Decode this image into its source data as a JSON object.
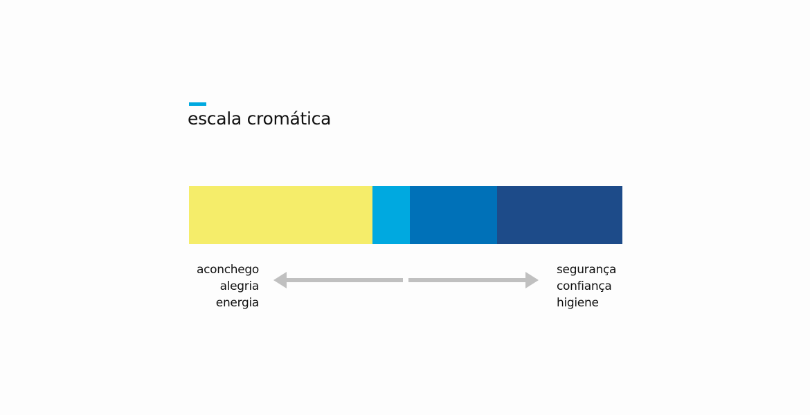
{
  "title": "escala cromática",
  "accent_color": "#00a9e0",
  "scale": [
    {
      "color": "#f5ed6a",
      "share": 265
    },
    {
      "color": "#00a9e0",
      "share": 54
    },
    {
      "color": "#0071b8",
      "share": 126
    },
    {
      "color": "#1d4b89",
      "share": 181
    }
  ],
  "left_labels": [
    "aconchego",
    "alegria",
    "energia"
  ],
  "right_labels": [
    "segurança",
    "confiança",
    "higiene"
  ],
  "arrow_color": "#c0c0c0"
}
